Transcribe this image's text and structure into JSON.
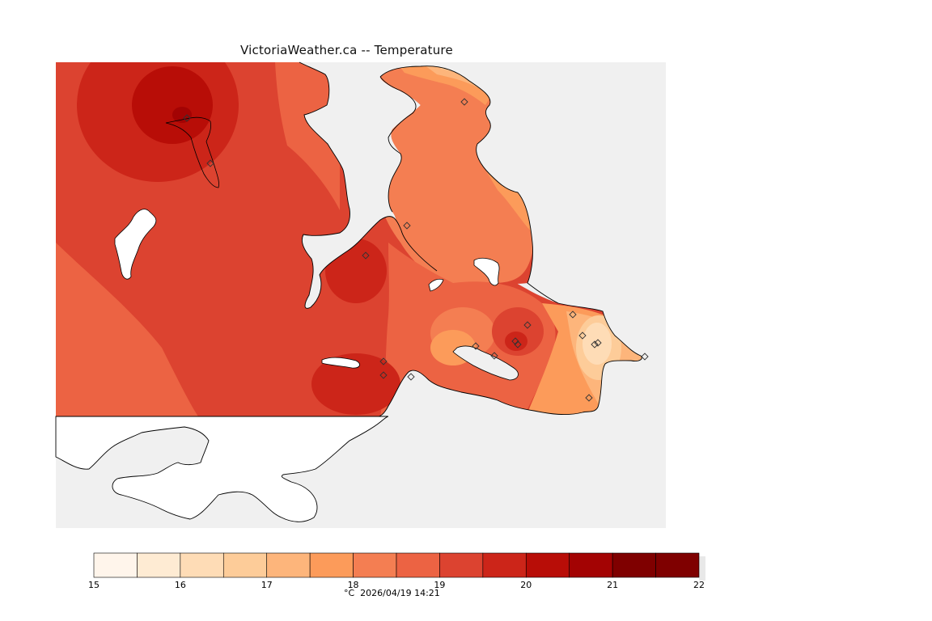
{
  "title": "VictoriaWeather.ca -- Temperature",
  "map": {
    "type": "contour",
    "variable": "Temperature",
    "unit": "°C",
    "water_color": "#f0f0f0",
    "no_data_color": "#ffffff",
    "coastline_color": "#000000",
    "station_marker": "diamond-icon"
  },
  "legend": {
    "min": 15,
    "max": 22,
    "step": 0.5,
    "ticks": [
      "15",
      "16",
      "17",
      "18",
      "19",
      "20",
      "21",
      "22"
    ],
    "colors": [
      "#fff5eb",
      "#feebd3",
      "#fedcb6",
      "#fdcc99",
      "#fdb57b",
      "#fc9b5a",
      "#f47e52",
      "#ec6343",
      "#dc4330",
      "#cc2519",
      "#b80d07",
      "#a30303",
      "#7f0000"
    ],
    "caption": "°C  2026/04/19 14:21"
  }
}
